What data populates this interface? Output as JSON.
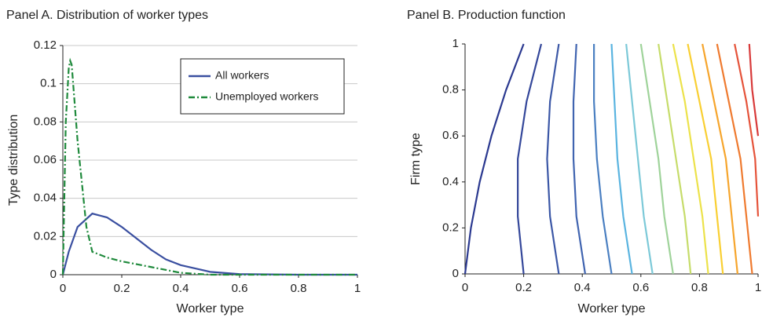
{
  "chart_data": [
    {
      "type": "line",
      "title": "Panel A. Distribution of worker types",
      "x_label": "Worker type",
      "y_label": "Type distribution",
      "xlim": [
        0,
        1
      ],
      "ylim": [
        0,
        0.12
      ],
      "xticks": [
        0,
        0.2,
        0.4,
        0.6,
        0.8,
        1
      ],
      "yticks": [
        0,
        0.02,
        0.04,
        0.06,
        0.08,
        0.1,
        0.12
      ],
      "grid": true,
      "legend": "upper right",
      "series": [
        {
          "name": "All workers",
          "color": "#3a4fa0",
          "style": "solid",
          "x": [
            0,
            0.02,
            0.05,
            0.1,
            0.15,
            0.2,
            0.25,
            0.3,
            0.35,
            0.4,
            0.5,
            0.6,
            0.8,
            1
          ],
          "values": [
            0,
            0.012,
            0.025,
            0.032,
            0.03,
            0.025,
            0.019,
            0.013,
            0.008,
            0.005,
            0.0015,
            0.0003,
            0,
            0
          ]
        },
        {
          "name": "Unemployed workers",
          "color": "#1f8a3c",
          "style": "dash-dot",
          "x": [
            0,
            0.01,
            0.02,
            0.025,
            0.03,
            0.05,
            0.08,
            0.1,
            0.15,
            0.2,
            0.3,
            0.4,
            0.5,
            0.6,
            1
          ],
          "values": [
            0,
            0.08,
            0.108,
            0.112,
            0.11,
            0.07,
            0.025,
            0.012,
            0.009,
            0.007,
            0.004,
            0.001,
            0,
            0,
            0
          ]
        }
      ]
    },
    {
      "type": "contour",
      "title": "Panel B. Production function",
      "x_label": "Worker type",
      "y_label": "Firm type",
      "xlim": [
        0,
        1
      ],
      "ylim": [
        0,
        1
      ],
      "xticks": [
        0,
        0.2,
        0.4,
        0.6,
        0.8,
        1
      ],
      "yticks": [
        0,
        0.2,
        0.4,
        0.6,
        0.8,
        1
      ],
      "grid": false,
      "series": [
        {
          "color": "#2b3990",
          "x": [
            0,
            0.02,
            0.05,
            0.09,
            0.14,
            0.2
          ],
          "values": [
            0,
            0.2,
            0.4,
            0.6,
            0.8,
            1
          ]
        },
        {
          "color": "#34479a",
          "x": [
            0.2,
            0.18,
            0.18,
            0.21,
            0.26
          ],
          "values": [
            0,
            0.25,
            0.5,
            0.75,
            1
          ]
        },
        {
          "color": "#3b57a6",
          "x": [
            0.32,
            0.29,
            0.28,
            0.29,
            0.32
          ],
          "values": [
            0,
            0.25,
            0.5,
            0.75,
            1
          ]
        },
        {
          "color": "#4064b0",
          "x": [
            0.41,
            0.38,
            0.37,
            0.37,
            0.38
          ],
          "values": [
            0,
            0.25,
            0.5,
            0.75,
            1
          ]
        },
        {
          "color": "#4a7fc1",
          "x": [
            0.5,
            0.47,
            0.45,
            0.44,
            0.44
          ],
          "values": [
            0,
            0.25,
            0.5,
            0.75,
            1
          ]
        },
        {
          "color": "#5ab4e0",
          "x": [
            0.57,
            0.54,
            0.52,
            0.51,
            0.5
          ],
          "values": [
            0,
            0.25,
            0.5,
            0.75,
            1
          ]
        },
        {
          "color": "#7cc9d8",
          "x": [
            0.64,
            0.61,
            0.59,
            0.57,
            0.55
          ],
          "values": [
            0,
            0.25,
            0.5,
            0.75,
            1
          ]
        },
        {
          "color": "#9fd39a",
          "x": [
            0.71,
            0.68,
            0.66,
            0.63,
            0.6
          ],
          "values": [
            0,
            0.25,
            0.5,
            0.75,
            1
          ]
        },
        {
          "color": "#c6dc6a",
          "x": [
            0.77,
            0.75,
            0.72,
            0.69,
            0.66
          ],
          "values": [
            0,
            0.25,
            0.5,
            0.75,
            1
          ]
        },
        {
          "color": "#ece24a",
          "x": [
            0.83,
            0.81,
            0.78,
            0.75,
            0.71
          ],
          "values": [
            0,
            0.25,
            0.5,
            0.75,
            1
          ]
        },
        {
          "color": "#f9cf32",
          "x": [
            0.88,
            0.86,
            0.84,
            0.8,
            0.76
          ],
          "values": [
            0,
            0.25,
            0.5,
            0.75,
            1
          ]
        },
        {
          "color": "#f6a52c",
          "x": [
            0.93,
            0.91,
            0.89,
            0.85,
            0.81
          ],
          "values": [
            0,
            0.25,
            0.5,
            0.75,
            1
          ]
        },
        {
          "color": "#ef7a2f",
          "x": [
            0.98,
            0.96,
            0.94,
            0.9,
            0.86
          ],
          "values": [
            0,
            0.25,
            0.5,
            0.75,
            1
          ]
        },
        {
          "color": "#e5533a",
          "x": [
            1,
            0.99,
            0.96,
            0.92
          ],
          "values": [
            0.25,
            0.5,
            0.75,
            1
          ]
        },
        {
          "color": "#d83a3a",
          "x": [
            1,
            0.98,
            0.97
          ],
          "values": [
            0.6,
            0.8,
            1
          ]
        }
      ]
    }
  ]
}
